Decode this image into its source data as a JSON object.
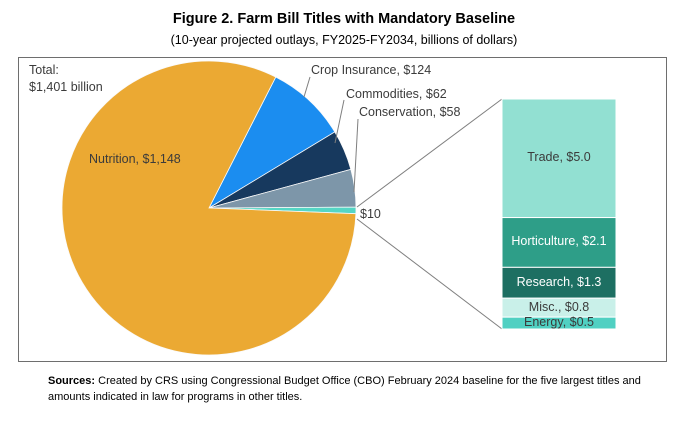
{
  "title": "Figure 2. Farm Bill Titles with Mandatory Baseline",
  "subtitle": "(10-year projected outlays, FY2025-FY2034, billions of dollars)",
  "total_label": {
    "line1": "Total:",
    "line2": "$1,401 billion"
  },
  "sources": {
    "label": "Sources:",
    "text": " Created by CRS using Congressional Budget Office (CBO) February 2024 baseline for the five largest titles and amounts indicated in law for programs in other titles."
  },
  "chart_data": {
    "type": "pie",
    "title": "Figure 2. Farm Bill Titles with Mandatory Baseline",
    "subtitle": "(10-year projected outlays, FY2025-FY2034, billions of dollars)",
    "total_billions": 1401,
    "pie": {
      "start_angle_clockwise_from_top_deg": 27,
      "slices": [
        {
          "name": "Crop Insurance",
          "value": 124,
          "label": "Crop Insurance, $124",
          "color": "#1B8DF0"
        },
        {
          "name": "Commodities",
          "value": 62,
          "label": "Commodities, $62",
          "color": "#17395E"
        },
        {
          "name": "Conservation",
          "value": 58,
          "label": "Conservation, $58",
          "color": "#7D96A9"
        },
        {
          "name": "Other titles",
          "value": 10,
          "label": "$10",
          "color": "#55D6C5"
        },
        {
          "name": "Nutrition",
          "value": 1148,
          "label": "Nutrition, $1,148",
          "color": "#EBA933"
        }
      ]
    },
    "bar": {
      "segments": [
        {
          "name": "Trade",
          "value": 5.0,
          "label": "Trade, $5.0",
          "color": "#92E0D2",
          "text_color": "#3B3B3B"
        },
        {
          "name": "Horticulture",
          "value": 2.1,
          "label": "Horticulture, $2.1",
          "color": "#2E9E88",
          "text_color": "#FFFFFF"
        },
        {
          "name": "Research",
          "value": 1.3,
          "label": "Research, $1.3",
          "color": "#1D6F62",
          "text_color": "#FFFFFF"
        },
        {
          "name": "Misc.",
          "value": 0.8,
          "label": "Misc., $0.8",
          "color": "#C9F0E9",
          "text_color": "#3B3B3B"
        },
        {
          "name": "Energy",
          "value": 0.5,
          "label": "Energy, $0.5",
          "color": "#50D0C2",
          "text_color": "#3B3B3B"
        }
      ]
    }
  }
}
